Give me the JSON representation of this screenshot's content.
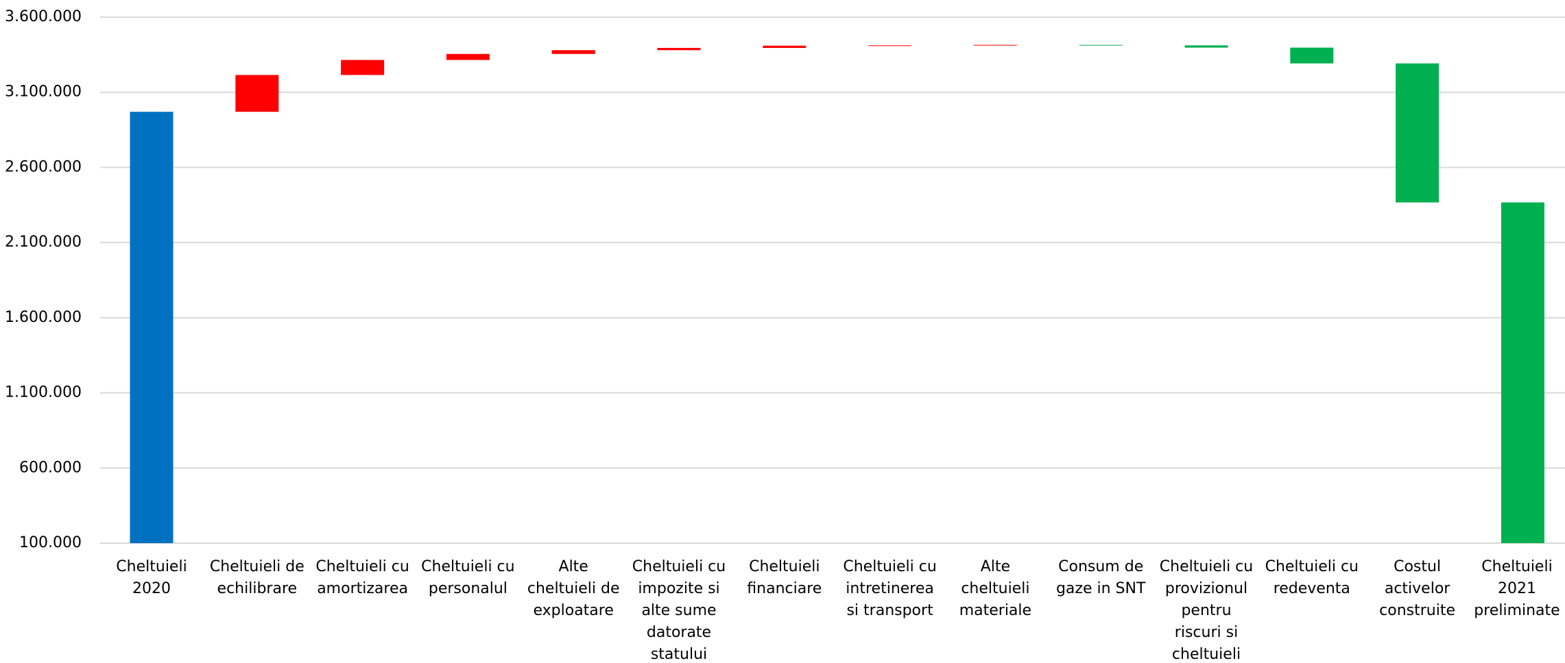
{
  "chart_data": {
    "type": "waterfall",
    "categories": [
      "Cheltuieli 2020",
      "Cheltuieli de echilibrare",
      "Cheltuieli cu amortizarea",
      "Cheltuieli cu personalul",
      "Alte cheltuieli de exploatare",
      "Cheltuieli cu impozite si alte sume datorate statului",
      "Cheltuieli financiare",
      "Cheltuieli cu intretinerea si transport",
      "Alte cheltuieli materiale",
      "Consum de gaze in SNT",
      "Cheltuieli cu provizionul pentru riscuri si cheltuieli",
      "Cheltuieli cu redeventa",
      "Costul activelor construite",
      "Cheltuieli 2021 preliminate"
    ],
    "values": [
      2970000,
      245000,
      100000,
      40000,
      25000,
      15000,
      15000,
      2000,
      3000,
      -3000,
      -15000,
      -105000,
      -925000,
      2367000
    ],
    "colors": {
      "start": "#0070c0",
      "increase": "#ff0000",
      "decrease": "#00b050",
      "end": "#00b050"
    },
    "ylim": [
      100000,
      3600000
    ],
    "yticks": [
      {
        "value": 100000,
        "label": "100.000"
      },
      {
        "value": 600000,
        "label": "600.000"
      },
      {
        "value": 1100000,
        "label": "1.100.000"
      },
      {
        "value": 1600000,
        "label": "1.600.000"
      },
      {
        "value": 2100000,
        "label": "2.100.000"
      },
      {
        "value": 2600000,
        "label": "2.600.000"
      },
      {
        "value": 3100000,
        "label": "3.100.000"
      },
      {
        "value": 3600000,
        "label": "3.600.000"
      }
    ],
    "grid": true
  }
}
